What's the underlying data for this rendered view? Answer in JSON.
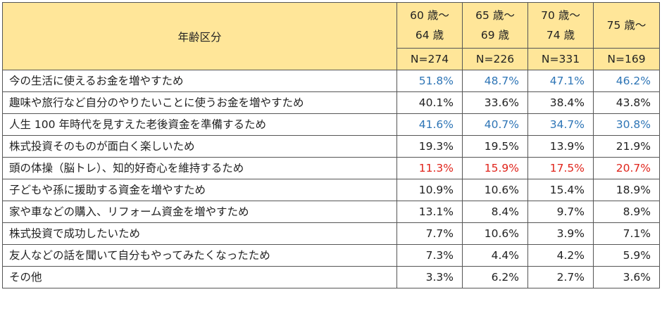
{
  "chart_data": {
    "type": "table",
    "header_label": "年齢区分",
    "columns": [
      {
        "age_line1": "60 歳〜",
        "age_line2": "64 歳",
        "n": "N=274"
      },
      {
        "age_line1": "65 歳〜",
        "age_line2": "69 歳",
        "n": "N=226"
      },
      {
        "age_line1": "70 歳〜",
        "age_line2": "74 歳",
        "n": "N=331"
      },
      {
        "age_line1": "75 歳〜",
        "age_line2": "",
        "n": "N=169"
      }
    ],
    "highlight_colors": {
      "blue": "#2e75b6",
      "red": "#e0241b"
    },
    "rows": [
      {
        "label": "今の生活に使えるお金を増やすため",
        "values": [
          "51.8%",
          "48.7%",
          "47.1%",
          "46.2%"
        ],
        "highlight": "blue"
      },
      {
        "label": "趣味や旅行など自分のやりたいことに使うお金を増やすため",
        "values": [
          "40.1%",
          "33.6%",
          "38.4%",
          "43.8%"
        ],
        "highlight": ""
      },
      {
        "label": "人生 100 年時代を見すえた老後資金を準備するため",
        "values": [
          "41.6%",
          "40.7%",
          "34.7%",
          "30.8%"
        ],
        "highlight": "blue"
      },
      {
        "label": "株式投資そのものが面白く楽しいため",
        "values": [
          "19.3%",
          "19.5%",
          "13.9%",
          "21.9%"
        ],
        "highlight": ""
      },
      {
        "label": "頭の体操（脳トレ）、知的好奇心を維持するため",
        "values": [
          "11.3%",
          "15.9%",
          "17.5%",
          "20.7%"
        ],
        "highlight": "red"
      },
      {
        "label": "子どもや孫に援助する資金を増やすため",
        "values": [
          "10.9%",
          "10.6%",
          "15.4%",
          "18.9%"
        ],
        "highlight": ""
      },
      {
        "label": "家や車などの購入、リフォーム資金を増やすため",
        "values": [
          "13.1%",
          "8.4%",
          "9.7%",
          "8.9%"
        ],
        "highlight": ""
      },
      {
        "label": "株式投資で成功したいため",
        "values": [
          "7.7%",
          "10.6%",
          "3.9%",
          "7.1%"
        ],
        "highlight": ""
      },
      {
        "label": "友人などの話を聞いて自分もやってみたくなったため",
        "values": [
          "7.3%",
          "4.4%",
          "4.2%",
          "5.9%"
        ],
        "highlight": ""
      },
      {
        "label": "その他",
        "values": [
          "3.3%",
          "6.2%",
          "2.7%",
          "3.6%"
        ],
        "highlight": ""
      }
    ]
  }
}
